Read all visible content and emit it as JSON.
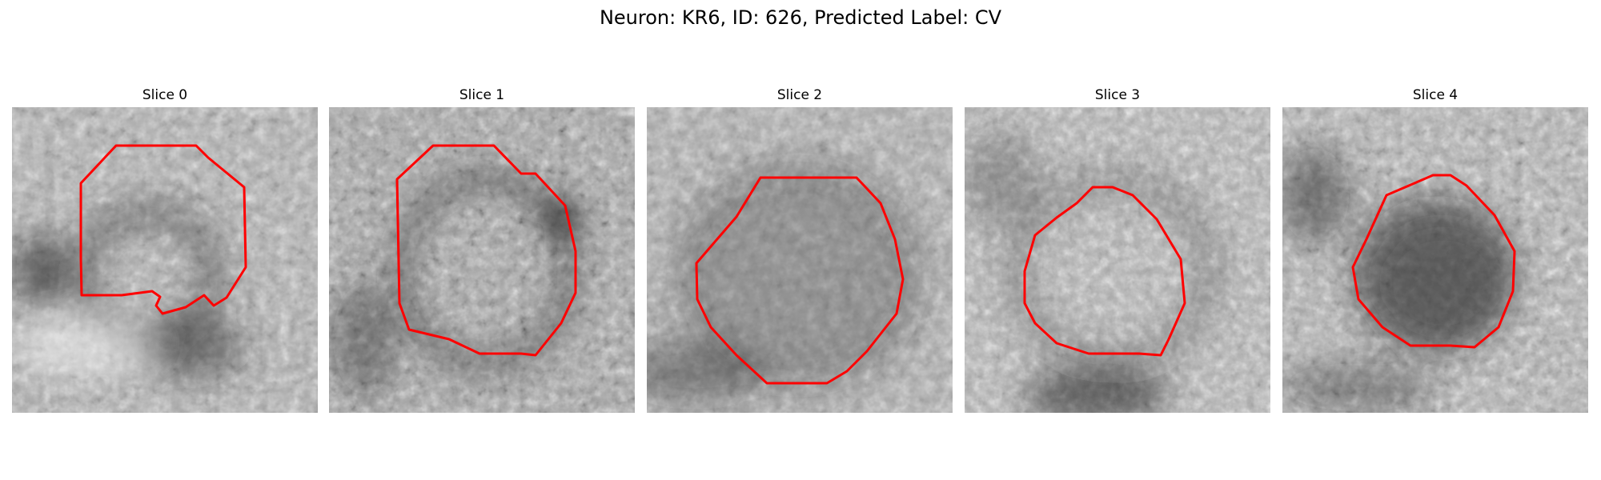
{
  "figure": {
    "title": "Neuron: KR6, ID: 626, Predicted Label: CV"
  },
  "colors": {
    "background": "#ffffff",
    "contour": "#ff0000",
    "image_scale": "grayscale"
  },
  "panels": [
    {
      "title": "Slice 0"
    },
    {
      "title": "Slice 1"
    },
    {
      "title": "Slice 2"
    },
    {
      "title": "Slice 3"
    },
    {
      "title": "Slice 4"
    }
  ]
}
